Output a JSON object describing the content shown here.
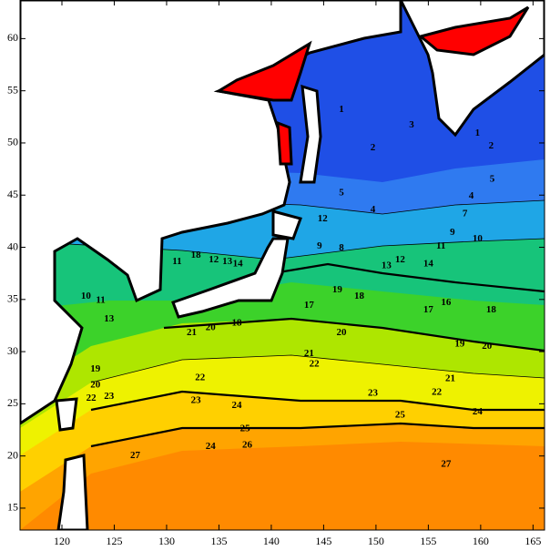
{
  "map": {
    "xlim": [
      116,
      166.1
    ],
    "ylim": [
      12.9,
      63.7
    ],
    "xticks": [
      120,
      125,
      130,
      135,
      140,
      145,
      150,
      155,
      160,
      165
    ],
    "yticks": [
      15,
      20,
      25,
      30,
      35,
      40,
      45,
      50,
      55,
      60
    ],
    "contour_labels": [
      {
        "value": 23,
        "lon": 132.8,
        "lat": 25.3
      },
      {
        "value": 24,
        "lon": 136.7,
        "lat": 24.8
      },
      {
        "value": 27,
        "lon": 127.0,
        "lat": 20.0
      },
      {
        "value": 27,
        "lon": 156.7,
        "lat": 19.2
      },
      {
        "value": 22,
        "lon": 133.2,
        "lat": 27.5
      },
      {
        "value": 22,
        "lon": 144.1,
        "lat": 28.8
      },
      {
        "value": 21,
        "lon": 143.6,
        "lat": 29.8
      },
      {
        "value": 20,
        "lon": 146.7,
        "lat": 31.8
      },
      {
        "value": 20,
        "lon": 134.2,
        "lat": 32.3
      },
      {
        "value": 18,
        "lon": 136.7,
        "lat": 32.7
      },
      {
        "value": 20,
        "lon": 160.6,
        "lat": 30.5
      },
      {
        "value": 19,
        "lon": 158.0,
        "lat": 30.7
      },
      {
        "value": 18,
        "lon": 161.0,
        "lat": 34.0
      },
      {
        "value": 16,
        "lon": 156.7,
        "lat": 34.7
      },
      {
        "value": 17,
        "lon": 155.0,
        "lat": 34.0
      },
      {
        "value": 18,
        "lon": 148.4,
        "lat": 35.3
      },
      {
        "value": 19,
        "lon": 146.3,
        "lat": 35.9
      },
      {
        "value": 12,
        "lon": 152.3,
        "lat": 38.8
      },
      {
        "value": 14,
        "lon": 155.0,
        "lat": 38.4
      },
      {
        "value": 13,
        "lon": 151.0,
        "lat": 38.2
      },
      {
        "value": 11,
        "lon": 156.2,
        "lat": 40.1
      },
      {
        "value": 10,
        "lon": 159.7,
        "lat": 40.8
      },
      {
        "value": 9,
        "lon": 157.3,
        "lat": 41.4
      },
      {
        "value": 7,
        "lon": 158.5,
        "lat": 43.2
      },
      {
        "value": 5,
        "lon": 161.1,
        "lat": 46.5
      },
      {
        "value": 4,
        "lon": 159.1,
        "lat": 44.9
      },
      {
        "value": 4,
        "lon": 149.7,
        "lat": 43.6
      },
      {
        "value": 5,
        "lon": 146.7,
        "lat": 45.2
      },
      {
        "value": 2,
        "lon": 149.7,
        "lat": 49.5
      },
      {
        "value": 3,
        "lon": 153.4,
        "lat": 51.7
      },
      {
        "value": 1,
        "lon": 159.7,
        "lat": 50.9
      },
      {
        "value": 2,
        "lon": 161.0,
        "lat": 49.7
      },
      {
        "value": 1,
        "lon": 146.7,
        "lat": 53.2
      },
      {
        "value": 18,
        "lon": 132.8,
        "lat": 39.2
      },
      {
        "value": 11,
        "lon": 131.0,
        "lat": 38.6
      },
      {
        "value": 12,
        "lon": 134.5,
        "lat": 38.8
      },
      {
        "value": 13,
        "lon": 135.8,
        "lat": 38.6
      },
      {
        "value": 14,
        "lon": 136.8,
        "lat": 38.4
      },
      {
        "value": 13,
        "lon": 124.5,
        "lat": 33.1
      },
      {
        "value": 10,
        "lon": 122.3,
        "lat": 35.3
      },
      {
        "value": 11,
        "lon": 123.7,
        "lat": 34.9
      },
      {
        "value": 19,
        "lon": 123.2,
        "lat": 28.3
      },
      {
        "value": 20,
        "lon": 123.2,
        "lat": 26.8
      },
      {
        "value": 22,
        "lon": 122.8,
        "lat": 25.5
      },
      {
        "value": 23,
        "lon": 124.5,
        "lat": 25.7
      },
      {
        "value": 17,
        "lon": 143.6,
        "lat": 34.4
      },
      {
        "value": 23,
        "lon": 149.7,
        "lat": 26.0
      },
      {
        "value": 25,
        "lon": 152.3,
        "lat": 23.9
      },
      {
        "value": 22,
        "lon": 155.8,
        "lat": 26.1
      },
      {
        "value": 21,
        "lon": 157.1,
        "lat": 27.4
      },
      {
        "value": 24,
        "lon": 159.7,
        "lat": 24.2
      },
      {
        "value": 24,
        "lon": 134.2,
        "lat": 20.9
      },
      {
        "value": 25,
        "lon": 137.5,
        "lat": 22.6
      },
      {
        "value": 26,
        "lon": 137.7,
        "lat": 21.0
      },
      {
        "value": 21,
        "lon": 132.4,
        "lat": 31.8
      },
      {
        "value": 12,
        "lon": 144.9,
        "lat": 42.7
      },
      {
        "value": 9,
        "lon": 144.6,
        "lat": 40.1
      },
      {
        "value": 8,
        "lon": 146.7,
        "lat": 39.9
      }
    ]
  }
}
